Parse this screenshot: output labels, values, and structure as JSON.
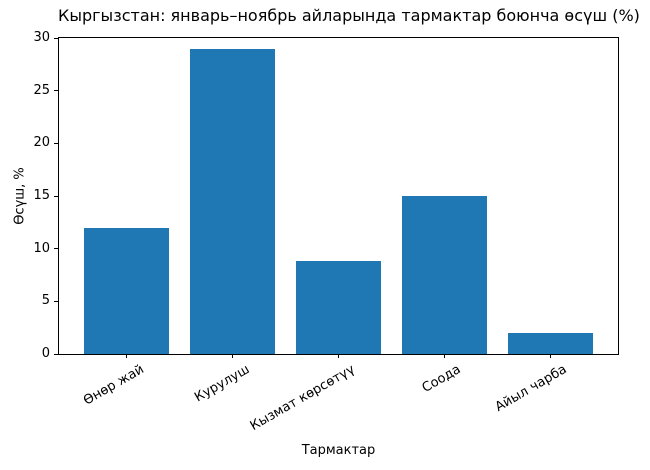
{
  "chart_data": {
    "type": "bar",
    "title": "Кыргызстан: январь–ноябрь айларында тармактар боюнча өсүш (%)",
    "xlabel": "Тармактар",
    "ylabel": "Өсүш, %",
    "categories": [
      "Өнөр жай",
      "Курулуш",
      "Кызмат көрсөтүү",
      "Соода",
      "Айыл чарба"
    ],
    "values": [
      12,
      29,
      8.8,
      15,
      2
    ],
    "ylim": [
      0,
      30
    ],
    "yticks": [
      0,
      5,
      10,
      15,
      20,
      25,
      30
    ],
    "bar_color": "#1f77b4",
    "axis_color": "#000000",
    "background_color": "#ffffff",
    "grid": false,
    "legend": false,
    "bar_width_fraction": 0.8
  }
}
